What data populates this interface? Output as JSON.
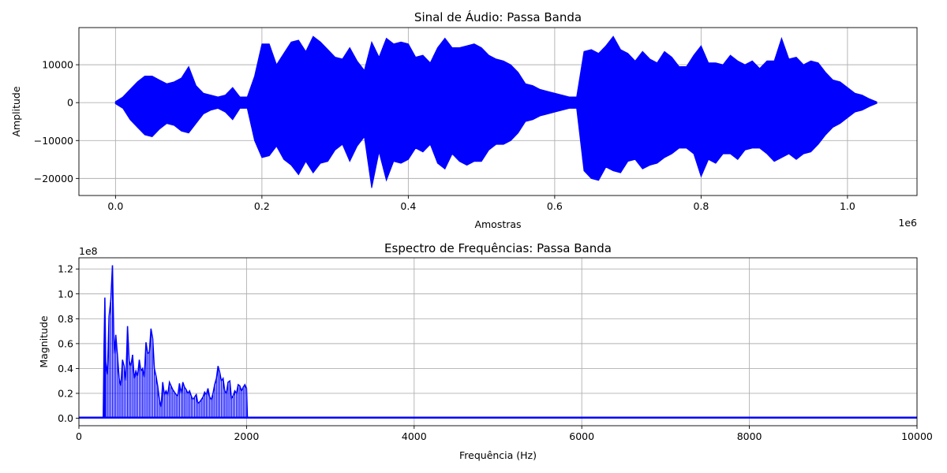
{
  "chart_data": [
    {
      "type": "line",
      "title": "Sinal de Áudio: Passa Banda",
      "xlabel": "Amostras",
      "ylabel": "Amplitude",
      "x_offset_label": "1e6",
      "xlim": [
        -50000,
        1095000
      ],
      "ylim": [
        -24500,
        19800
      ],
      "x_ticks": [
        0,
        200000,
        400000,
        600000,
        800000,
        1000000
      ],
      "x_tick_labels": [
        "0.0",
        "0.2",
        "0.4",
        "0.6",
        "0.8",
        "1.0"
      ],
      "y_ticks": [
        -20000,
        -10000,
        0,
        10000
      ],
      "y_tick_labels": [
        "−20000",
        "−10000",
        "0",
        "10000"
      ],
      "grid": true,
      "color": "#0000ff",
      "series": [
        {
          "x": [
            0,
            10000,
            20000,
            30000,
            40000,
            50000,
            60000,
            70000,
            80000,
            90000,
            100000,
            110000,
            120000,
            130000,
            140000,
            150000,
            160000,
            170000,
            180000,
            190000,
            200000,
            210000,
            220000,
            230000,
            240000,
            250000,
            260000,
            270000,
            280000,
            290000,
            300000,
            310000,
            320000,
            330000,
            340000,
            350000,
            360000,
            370000,
            380000,
            390000,
            400000,
            410000,
            420000,
            430000,
            440000,
            450000,
            460000,
            470000,
            480000,
            490000,
            500000,
            510000,
            520000,
            530000,
            540000,
            550000,
            560000,
            570000,
            580000,
            590000,
            600000,
            610000,
            620000,
            630000,
            640000,
            650000,
            660000,
            670000,
            680000,
            690000,
            700000,
            710000,
            720000,
            730000,
            740000,
            750000,
            760000,
            770000,
            780000,
            790000,
            800000,
            810000,
            820000,
            830000,
            840000,
            850000,
            860000,
            870000,
            880000,
            890000,
            900000,
            910000,
            920000,
            930000,
            940000,
            950000,
            960000,
            970000,
            980000,
            990000,
            1000000,
            1010000,
            1020000,
            1030000,
            1040000
          ],
          "max": [
            300,
            1500,
            3500,
            5500,
            7000,
            7000,
            6000,
            5000,
            5500,
            6500,
            9500,
            4500,
            2500,
            2000,
            1500,
            2000,
            4000,
            1500,
            1500,
            7000,
            15500,
            15500,
            10000,
            13000,
            16000,
            16500,
            13500,
            17500,
            16000,
            14000,
            12000,
            11500,
            14500,
            11000,
            8500,
            16000,
            12000,
            17000,
            15500,
            16000,
            15500,
            12000,
            12500,
            10500,
            14500,
            17000,
            14500,
            14500,
            15000,
            15500,
            14500,
            12500,
            11500,
            11000,
            10000,
            8000,
            5000,
            4500,
            3500,
            3000,
            2500,
            2000,
            1500,
            1500,
            13500,
            14000,
            13000,
            15000,
            17500,
            14000,
            13000,
            11000,
            13500,
            11500,
            10500,
            13500,
            12000,
            9500,
            9500,
            12500,
            15000,
            10500,
            10500,
            10000,
            12500,
            11000,
            10000,
            11000,
            9000,
            11000,
            11000,
            17000,
            11500,
            12000,
            10000,
            11000,
            10500,
            8000,
            6000,
            5500,
            4000,
            2500,
            2000,
            1000,
            200
          ],
          "min": [
            -300,
            -1500,
            -4500,
            -6500,
            -8500,
            -9000,
            -7000,
            -5500,
            -6000,
            -7500,
            -8000,
            -5500,
            -3000,
            -2000,
            -1500,
            -2500,
            -4500,
            -1500,
            -1500,
            -10000,
            -14500,
            -14000,
            -11500,
            -15000,
            -16500,
            -19000,
            -15500,
            -18500,
            -16000,
            -15500,
            -12500,
            -11000,
            -15500,
            -11500,
            -9000,
            -22500,
            -13000,
            -20500,
            -15500,
            -16000,
            -15000,
            -12000,
            -13000,
            -11000,
            -16000,
            -17500,
            -13500,
            -15500,
            -16500,
            -15500,
            -15500,
            -12500,
            -11000,
            -11000,
            -10000,
            -8000,
            -5000,
            -4500,
            -3500,
            -3000,
            -2500,
            -2000,
            -1500,
            -1500,
            -18000,
            -20000,
            -20500,
            -17000,
            -18000,
            -18500,
            -15500,
            -15000,
            -17500,
            -16500,
            -16000,
            -14500,
            -13500,
            -12000,
            -12000,
            -13500,
            -19500,
            -15000,
            -16000,
            -13500,
            -13500,
            -15000,
            -12500,
            -12000,
            -12000,
            -13500,
            -15500,
            -14500,
            -13500,
            -15000,
            -13500,
            -13000,
            -11000,
            -8500,
            -6500,
            -5500,
            -4000,
            -2500,
            -2000,
            -1000,
            -200
          ]
        }
      ]
    },
    {
      "type": "line",
      "title": "Espectro de Frequências: Passa Banda",
      "xlabel": "Frequência (Hz)",
      "ylabel": "Magnitude",
      "y_offset_label": "1e8",
      "xlim": [
        0,
        10000
      ],
      "ylim": [
        -0.06,
        1.29
      ],
      "x_ticks": [
        0,
        2000,
        4000,
        6000,
        8000,
        10000
      ],
      "x_tick_labels": [
        "0",
        "2000",
        "4000",
        "6000",
        "8000",
        "10000"
      ],
      "y_ticks": [
        0.0,
        0.2,
        0.4,
        0.6,
        0.8,
        1.0,
        1.2
      ],
      "y_tick_labels": [
        "0.0",
        "0.2",
        "0.4",
        "0.6",
        "0.8",
        "1.0",
        "1.2"
      ],
      "grid": true,
      "color": "#0000ff",
      "series": [
        {
          "x": [
            0,
            290,
            300,
            310,
            320,
            340,
            360,
            380,
            400,
            420,
            440,
            460,
            480,
            500,
            520,
            540,
            560,
            580,
            600,
            620,
            640,
            660,
            680,
            700,
            720,
            740,
            760,
            780,
            800,
            820,
            840,
            860,
            880,
            900,
            920,
            940,
            960,
            980,
            1000,
            1020,
            1040,
            1060,
            1080,
            1100,
            1120,
            1140,
            1160,
            1180,
            1200,
            1220,
            1240,
            1260,
            1280,
            1300,
            1320,
            1340,
            1360,
            1380,
            1400,
            1420,
            1440,
            1460,
            1480,
            1500,
            1520,
            1540,
            1560,
            1580,
            1600,
            1620,
            1640,
            1660,
            1680,
            1700,
            1720,
            1740,
            1760,
            1780,
            1800,
            1820,
            1840,
            1860,
            1880,
            1900,
            1920,
            1940,
            1960,
            1980,
            2000,
            2010,
            10000
          ],
          "y": [
            0.005,
            0.005,
            0.6,
            0.97,
            0.45,
            0.35,
            0.82,
            0.95,
            1.23,
            0.52,
            0.67,
            0.5,
            0.32,
            0.26,
            0.47,
            0.42,
            0.3,
            0.74,
            0.46,
            0.42,
            0.51,
            0.32,
            0.38,
            0.34,
            0.47,
            0.38,
            0.4,
            0.33,
            0.61,
            0.52,
            0.53,
            0.72,
            0.64,
            0.4,
            0.34,
            0.26,
            0.15,
            0.09,
            0.29,
            0.19,
            0.22,
            0.19,
            0.29,
            0.26,
            0.23,
            0.21,
            0.19,
            0.18,
            0.28,
            0.2,
            0.29,
            0.25,
            0.23,
            0.2,
            0.22,
            0.18,
            0.15,
            0.17,
            0.19,
            0.12,
            0.13,
            0.15,
            0.17,
            0.21,
            0.19,
            0.24,
            0.17,
            0.15,
            0.2,
            0.27,
            0.32,
            0.42,
            0.37,
            0.3,
            0.32,
            0.22,
            0.2,
            0.29,
            0.3,
            0.16,
            0.18,
            0.22,
            0.2,
            0.27,
            0.26,
            0.22,
            0.25,
            0.27,
            0.24,
            0.005,
            0.005
          ]
        }
      ]
    }
  ]
}
